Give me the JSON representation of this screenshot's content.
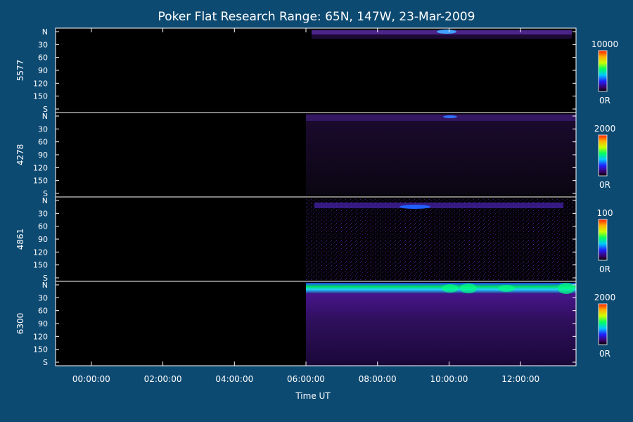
{
  "chart_data": {
    "type": "heatmap",
    "title": "Poker Flat Research Range: 65N, 147W, 23-Mar-2009",
    "xlabel": "Time UT",
    "x_ticks": [
      "00:00:00",
      "02:00:00",
      "04:00:00",
      "06:00:00",
      "08:00:00",
      "10:00:00",
      "12:00:00"
    ],
    "x_tick_hours": [
      0,
      2,
      4,
      6,
      8,
      10,
      12
    ],
    "x_range_hours": [
      -1.0,
      13.55
    ],
    "y_ticks": [
      "N",
      "30",
      "60",
      "90",
      "120",
      "150",
      "S"
    ],
    "y_tick_values": [
      0,
      30,
      60,
      90,
      120,
      150,
      180
    ],
    "y_range": [
      0,
      180
    ],
    "data_start_hour": 6.0,
    "panels": [
      {
        "name": "5577",
        "colorbar_max": "10000",
        "colorbar_min": "0R",
        "description": "emission confined near northern horizon",
        "intensity_profile": [
          {
            "hour": 6.2,
            "level": 0.2
          },
          {
            "hour": 8.0,
            "level": 0.22
          },
          {
            "hour": 9.5,
            "level": 0.28
          },
          {
            "hour": 10.0,
            "level": 0.4
          },
          {
            "hour": 11.0,
            "level": 0.22
          },
          {
            "hour": 13.5,
            "level": 0.18
          }
        ]
      },
      {
        "name": "4278",
        "colorbar_max": "2000",
        "colorbar_min": "0R",
        "intensity_profile": [
          {
            "hour": 6.0,
            "level": 0.15
          },
          {
            "hour": 8.0,
            "level": 0.18
          },
          {
            "hour": 10.0,
            "level": 0.22
          },
          {
            "hour": 12.0,
            "level": 0.16
          },
          {
            "hour": 13.5,
            "level": 0.15
          }
        ]
      },
      {
        "name": "4861",
        "colorbar_max": "100",
        "colorbar_min": "0R",
        "intensity_profile": [
          {
            "hour": 6.2,
            "level": 0.25
          },
          {
            "hour": 7.5,
            "level": 0.35
          },
          {
            "hour": 9.0,
            "level": 0.45
          },
          {
            "hour": 10.5,
            "level": 0.3
          },
          {
            "hour": 13.0,
            "level": 0.25
          }
        ]
      },
      {
        "name": "6300",
        "colorbar_max": "2000",
        "colorbar_min": "0R",
        "intensity_profile": [
          {
            "hour": 6.0,
            "level": 0.55
          },
          {
            "hour": 7.0,
            "level": 0.6
          },
          {
            "hour": 8.0,
            "level": 0.58
          },
          {
            "hour": 9.0,
            "level": 0.55
          },
          {
            "hour": 10.0,
            "level": 0.6
          },
          {
            "hour": 10.7,
            "level": 0.62
          },
          {
            "hour": 12.0,
            "level": 0.55
          },
          {
            "hour": 13.55,
            "level": 0.7
          }
        ]
      }
    ]
  }
}
